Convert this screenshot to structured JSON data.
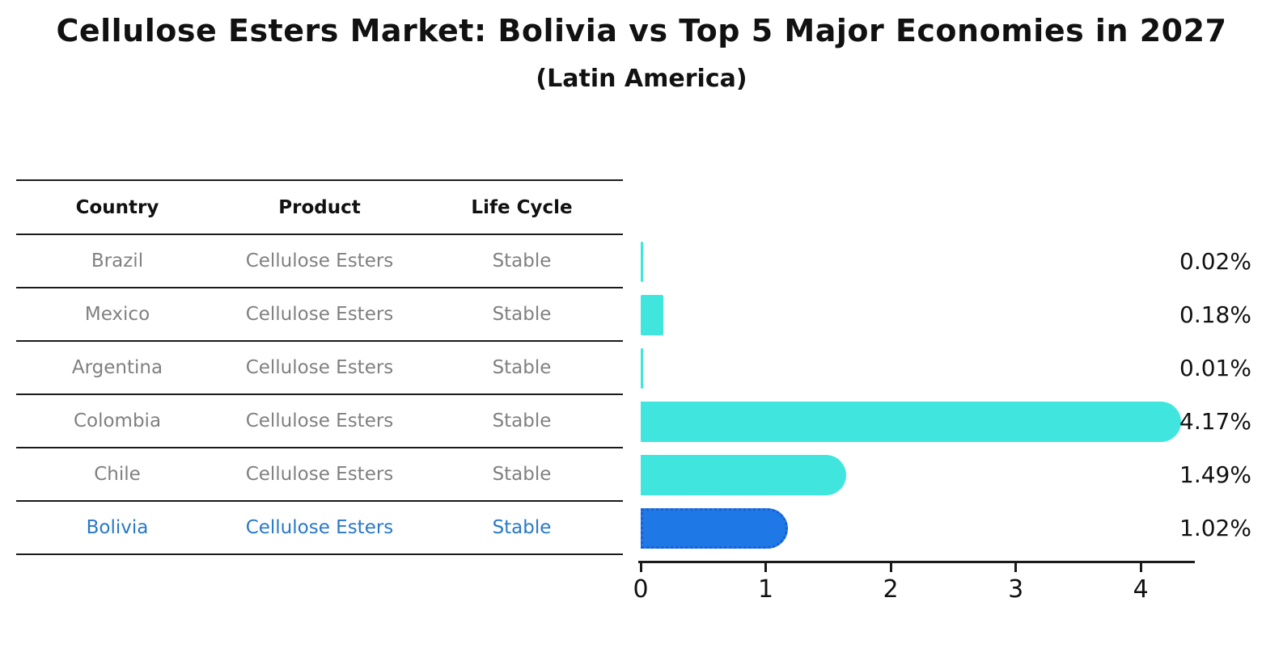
{
  "title": "Cellulose Esters Market: Bolivia vs Top 5 Major Economies in 2027",
  "subtitle": "(Latin America)",
  "table": {
    "headers": [
      "Country",
      "Product",
      "Life Cycle"
    ],
    "rows": [
      {
        "country": "Brazil",
        "product": "Cellulose Esters",
        "life_cycle": "Stable",
        "highlight": false
      },
      {
        "country": "Mexico",
        "product": "Cellulose Esters",
        "life_cycle": "Stable",
        "highlight": false
      },
      {
        "country": "Argentina",
        "product": "Cellulose Esters",
        "life_cycle": "Stable",
        "highlight": false
      },
      {
        "country": "Colombia",
        "product": "Cellulose Esters",
        "life_cycle": "Stable",
        "highlight": false
      },
      {
        "country": "Chile",
        "product": "Cellulose Esters",
        "life_cycle": "Stable",
        "highlight": false
      },
      {
        "country": "Bolivia",
        "product": "Cellulose Esters",
        "life_cycle": "Stable",
        "highlight": true
      }
    ]
  },
  "chart_data": {
    "type": "bar",
    "orientation": "horizontal",
    "title": "Cellulose Esters Market: Bolivia vs Top 5 Major Economies in 2027",
    "subtitle": "(Latin America)",
    "categories": [
      "Brazil",
      "Mexico",
      "Argentina",
      "Colombia",
      "Chile",
      "Bolivia"
    ],
    "values": [
      0.02,
      0.18,
      0.01,
      4.17,
      1.49,
      1.02
    ],
    "value_labels": [
      "0.02%",
      "0.18%",
      "0.01%",
      "4.17%",
      "1.49%",
      "1.02%"
    ],
    "xticks": [
      0,
      1,
      2,
      3,
      4
    ],
    "xlim": [
      0,
      4.4
    ],
    "grid": false,
    "legend": "none",
    "highlight_index": 5,
    "bar_color": "#40e6de",
    "highlight_color": "#1e79e6",
    "highlight_border_color": "#1a5fd4"
  },
  "colors": {
    "accent_cyan": "#40e6de",
    "highlight_blue": "#1e79e6",
    "highlight_border": "#1a5fd4",
    "highlight_text": "#2878c8",
    "text_black": "#111111",
    "text_gray": "#808080",
    "line_black": "#1a1a1a"
  }
}
